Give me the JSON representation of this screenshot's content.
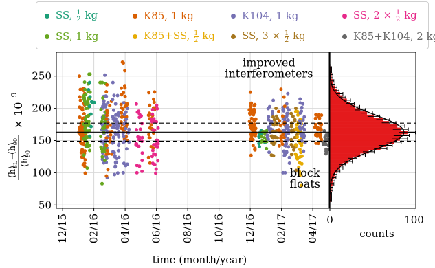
{
  "chart_data": {
    "type": "scatter",
    "legend_placement": "top",
    "ylabel_html": "ratio",
    "ylabel_parts": {
      "num_a": "⟨h⟩",
      "num_sub_a": "SL",
      "minus": "−",
      "num_b": "⟨h⟩",
      "num_sub_b": "90",
      "den": "⟨h⟩",
      "den_sub": "90",
      "times": "× 10",
      "exp": "9"
    },
    "xlabel": "time (month/year)",
    "ylim": [
      45,
      287
    ],
    "yticks": [
      50,
      100,
      150,
      200,
      250
    ],
    "xticks": [
      {
        "label": "12/15",
        "x": 0
      },
      {
        "label": "02/16",
        "x": 2
      },
      {
        "label": "04/16",
        "x": 4
      },
      {
        "label": "06/16",
        "x": 6
      },
      {
        "label": "08/16",
        "x": 8
      },
      {
        "label": "10/16",
        "x": 10
      },
      {
        "label": "12/16",
        "x": 12
      },
      {
        "label": "02/17",
        "x": 14
      },
      {
        "label": "04/17",
        "x": 16
      }
    ],
    "xlim": [
      -0.4,
      17.05
    ],
    "hlines": {
      "mean": 163,
      "upper": 177,
      "lower": 149
    },
    "annotations": [
      {
        "text": "improved",
        "x": 13.2,
        "y": 265
      },
      {
        "text": "interferometers",
        "x": 13.2,
        "y": 248
      },
      {
        "text": "block",
        "x": 15.5,
        "y": 94
      },
      {
        "text": "floats",
        "x": 15.5,
        "y": 77
      }
    ],
    "series": [
      {
        "name_parts": [
          "SS, ",
          "1",
          "2",
          " kg"
        ],
        "color": "#1b9e77"
      },
      {
        "name_parts": [
          "K85, 1 kg"
        ],
        "color": "#d95f02"
      },
      {
        "name_parts": [
          "K104, 1 kg"
        ],
        "color": "#7570b3"
      },
      {
        "name_parts": [
          "SS, 2 × ",
          "1",
          "2",
          " kg"
        ],
        "color": "#e7298a"
      },
      {
        "name_parts": [
          "SS, 1 kg"
        ],
        "color": "#66a61e"
      },
      {
        "name_parts": [
          "K85+SS, ",
          "1",
          "2",
          " kg"
        ],
        "color": "#e6ab02"
      },
      {
        "name_parts": [
          "SS, 3 × ",
          "1",
          "2",
          " kg"
        ],
        "color": "#a6761d"
      },
      {
        "name_parts": [
          "K85+K104, 2 kg"
        ],
        "color": "#666666"
      }
    ],
    "clusters": [
      {
        "series": 1,
        "x": 1.25,
        "mean": 175,
        "sd": 38,
        "n": 70,
        "lo": 80,
        "hi": 250
      },
      {
        "series": 4,
        "x": 1.55,
        "mean": 178,
        "sd": 40,
        "n": 55,
        "lo": 58,
        "hi": 253
      },
      {
        "series": 0,
        "x": 1.85,
        "mean": 200,
        "sd": 25,
        "n": 10,
        "lo": 150,
        "hi": 240
      },
      {
        "series": 2,
        "x": 2.7,
        "mean": 170,
        "sd": 32,
        "n": 70,
        "lo": 90,
        "hi": 255
      },
      {
        "series": 4,
        "x": 2.55,
        "mean": 170,
        "sd": 40,
        "n": 30,
        "lo": 55,
        "hi": 240
      },
      {
        "series": 1,
        "x": 3.0,
        "mean": 165,
        "sd": 35,
        "n": 25,
        "lo": 95,
        "hi": 255
      },
      {
        "series": 2,
        "x": 3.4,
        "mean": 170,
        "sd": 30,
        "n": 50,
        "lo": 75,
        "hi": 240
      },
      {
        "series": 1,
        "x": 3.95,
        "mean": 200,
        "sd": 35,
        "n": 40,
        "lo": 135,
        "hi": 282
      },
      {
        "series": 2,
        "x": 4.05,
        "mean": 170,
        "sd": 30,
        "n": 20,
        "lo": 100,
        "hi": 250
      },
      {
        "series": 3,
        "x": 4.9,
        "mean": 155,
        "sd": 25,
        "n": 25,
        "lo": 100,
        "hi": 210
      },
      {
        "series": 1,
        "x": 5.7,
        "mean": 175,
        "sd": 28,
        "n": 30,
        "lo": 115,
        "hi": 265
      },
      {
        "series": 3,
        "x": 5.9,
        "mean": 150,
        "sd": 28,
        "n": 30,
        "lo": 95,
        "hi": 210
      },
      {
        "series": 1,
        "x": 12.15,
        "mean": 172,
        "sd": 22,
        "n": 60,
        "lo": 110,
        "hi": 225
      },
      {
        "series": 0,
        "x": 12.75,
        "mean": 150,
        "sd": 10,
        "n": 12,
        "lo": 130,
        "hi": 190
      },
      {
        "series": 4,
        "x": 12.9,
        "mean": 155,
        "sd": 12,
        "n": 15,
        "lo": 130,
        "hi": 180
      },
      {
        "series": 2,
        "x": 13.3,
        "mean": 170,
        "sd": 20,
        "n": 20,
        "lo": 130,
        "hi": 225
      },
      {
        "series": 6,
        "x": 13.55,
        "mean": 160,
        "sd": 18,
        "n": 25,
        "lo": 115,
        "hi": 200
      },
      {
        "series": 2,
        "x": 14.3,
        "mean": 168,
        "sd": 30,
        "n": 55,
        "lo": 100,
        "hi": 245
      },
      {
        "series": 1,
        "x": 14.0,
        "mean": 170,
        "sd": 25,
        "n": 20,
        "lo": 110,
        "hi": 235
      },
      {
        "series": 6,
        "x": 14.8,
        "mean": 155,
        "sd": 25,
        "n": 25,
        "lo": 100,
        "hi": 200
      },
      {
        "series": 5,
        "x": 15.1,
        "mean": 145,
        "sd": 28,
        "n": 45,
        "lo": 65,
        "hi": 195
      },
      {
        "series": 2,
        "x": 15.35,
        "mean": 165,
        "sd": 25,
        "n": 25,
        "lo": 100,
        "hi": 225
      },
      {
        "series": 1,
        "x": 16.35,
        "mean": 160,
        "sd": 15,
        "n": 30,
        "lo": 125,
        "hi": 190
      },
      {
        "series": 7,
        "x": 16.85,
        "mean": 150,
        "sd": 10,
        "n": 25,
        "lo": 120,
        "hi": 170
      }
    ],
    "histogram": {
      "xlabel": "counts",
      "xticks": [
        0,
        100
      ],
      "xlim": [
        0,
        102
      ],
      "bins": [
        {
          "y": 57.5,
          "count": 1
        },
        {
          "y": 62.5,
          "count": 1
        },
        {
          "y": 67.5,
          "count": 1
        },
        {
          "y": 72.5,
          "count": 2
        },
        {
          "y": 77.5,
          "count": 2
        },
        {
          "y": 82.5,
          "count": 3
        },
        {
          "y": 87.5,
          "count": 4
        },
        {
          "y": 92.5,
          "count": 5
        },
        {
          "y": 97.5,
          "count": 6
        },
        {
          "y": 102.5,
          "count": 9
        },
        {
          "y": 107.5,
          "count": 12
        },
        {
          "y": 112.5,
          "count": 15
        },
        {
          "y": 117.5,
          "count": 22
        },
        {
          "y": 122.5,
          "count": 27
        },
        {
          "y": 127.5,
          "count": 36
        },
        {
          "y": 132.5,
          "count": 46
        },
        {
          "y": 137.5,
          "count": 60
        },
        {
          "y": 142.5,
          "count": 66
        },
        {
          "y": 147.5,
          "count": 76
        },
        {
          "y": 152.5,
          "count": 83
        },
        {
          "y": 157.5,
          "count": 85
        },
        {
          "y": 162.5,
          "count": 92
        },
        {
          "y": 167.5,
          "count": 84
        },
        {
          "y": 172.5,
          "count": 80
        },
        {
          "y": 177.5,
          "count": 70
        },
        {
          "y": 182.5,
          "count": 63
        },
        {
          "y": 187.5,
          "count": 52
        },
        {
          "y": 192.5,
          "count": 44
        },
        {
          "y": 197.5,
          "count": 36
        },
        {
          "y": 202.5,
          "count": 30
        },
        {
          "y": 207.5,
          "count": 24
        },
        {
          "y": 212.5,
          "count": 20
        },
        {
          "y": 217.5,
          "count": 15
        },
        {
          "y": 222.5,
          "count": 12
        },
        {
          "y": 227.5,
          "count": 8
        },
        {
          "y": 232.5,
          "count": 6
        },
        {
          "y": 237.5,
          "count": 4
        },
        {
          "y": 242.5,
          "count": 3
        },
        {
          "y": 247.5,
          "count": 2
        },
        {
          "y": 252.5,
          "count": 2
        },
        {
          "y": 257.5,
          "count": 1
        },
        {
          "y": 262.5,
          "count": 1
        }
      ],
      "fit": {
        "mean": 163,
        "sd": 27,
        "peak": 88
      },
      "bar_color": "#e41a1c"
    }
  }
}
